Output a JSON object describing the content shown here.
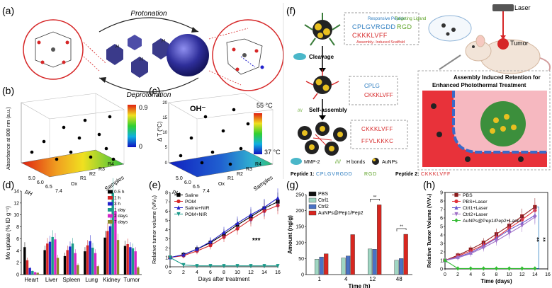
{
  "panel_labels": {
    "a": "(a)",
    "b": "(b)",
    "c": "(c)",
    "d": "(d)",
    "e": "(e)",
    "f": "(f)",
    "g": "(g)",
    "h": "(h)"
  },
  "panel_a": {
    "top_text": "Protonation",
    "bottom_text": "Deprotonation",
    "oh": "OH⁻",
    "h_label": "H"
  },
  "panel_b": {
    "zlabel": "Absorbance at 808 nm (a.u.)",
    "xlabel": "pH",
    "samples_label": "Samples",
    "ph_ticks": [
      "5.0",
      "6.0",
      "6.5",
      "7.4"
    ],
    "sample_ticks": [
      "Ox",
      "R1",
      "R2",
      "R3",
      "R4"
    ],
    "colorbar_max": "0.9",
    "colorbar_min": "0"
  },
  "panel_c": {
    "zlabel": "Δ T (°C)",
    "xlabel": "pH",
    "samples_label": "Samples",
    "z_ticks": [
      "0",
      "5",
      "10",
      "15",
      "20"
    ],
    "ph_ticks": [
      "5.0",
      "6.0",
      "6.5",
      "7.4"
    ],
    "sample_ticks": [
      "Ox",
      "R1",
      "R2",
      "R3",
      "R4"
    ],
    "colorbar_max": "55 °C",
    "colorbar_min": "37 °C"
  },
  "panel_f": {
    "cleavage": "Cleavage",
    "self_assembly": "Self-assembly",
    "responsive_peptide": "Responsive Peptide",
    "targeting_ligand": "Targeting Ligand",
    "seq_top": "CPLGVRGDD",
    "seq_rgd": "RGD",
    "seq_kl": "CKKKLVFF",
    "assembly_scaffold": "Assembly- Induced Scaffold",
    "seq_cplg": "CPLG",
    "seq_ffv": "FFVLKKKC",
    "legend_mmp": "MMP-2",
    "legend_hb": "H bonds",
    "legend_au": "AuNPs",
    "peptide1_label": "Peptide 1:",
    "peptide1_seq": "CPLGVRGDD",
    "peptide1_rgd": "RGD",
    "peptide2_label": "Peptide 2:",
    "peptide2_seq": "CKKKLVFF",
    "laser": "Laser",
    "tumor": "Tumor",
    "retention_title_1": "Assembly Induced  Retention for",
    "retention_title_2": "Enhanced Photothermal Treatment"
  },
  "chart_data": [
    {
      "panel": "b",
      "type": "scatter",
      "zlabel": "Absorbance at 808 nm (a.u.)",
      "xlabel": "pH",
      "ylabel": "Samples",
      "color_range": [
        0,
        0.9
      ],
      "x_ticks": [
        "5.0",
        "6.0",
        "6.5",
        "7.4"
      ],
      "y_ticks": [
        "Ox",
        "R1",
        "R2",
        "R3",
        "R4"
      ]
    },
    {
      "panel": "c",
      "type": "scatter",
      "zlabel": "Δ T (°C)",
      "xlabel": "pH",
      "ylabel": "Samples",
      "zlim": [
        0,
        20
      ],
      "color_range": [
        37,
        55
      ],
      "x_ticks": [
        "5.0",
        "6.0",
        "6.5",
        "7.4"
      ],
      "y_ticks": [
        "Ox",
        "R1",
        "R2",
        "R3",
        "R4"
      ]
    },
    {
      "panel": "d",
      "type": "bar",
      "ylabel": "Mo uptake (% ID g⁻¹)",
      "ylim": [
        0,
        14
      ],
      "y_ticks": [
        0,
        2,
        4,
        6,
        8,
        10,
        12,
        14
      ],
      "categories": [
        "Heart",
        "Liver",
        "Spleen",
        "Lung",
        "Kidney",
        "Tumor"
      ],
      "series": [
        {
          "name": "0.5 h",
          "color": "#000000",
          "values": [
            4.6,
            4.1,
            3.1,
            3.9,
            6.2,
            4.8
          ]
        },
        {
          "name": "1 h",
          "color": "#d62728",
          "values": [
            2.4,
            5.2,
            4.1,
            4.9,
            7.3,
            5.1
          ]
        },
        {
          "name": "3 h",
          "color": "#2222cc",
          "values": [
            1.1,
            5.5,
            4.7,
            5.6,
            8.1,
            4.6
          ]
        },
        {
          "name": "1 day",
          "color": "#1a9a8a",
          "values": [
            0.6,
            6.3,
            5.2,
            4.5,
            13.7,
            4.4
          ]
        },
        {
          "name": "2 days",
          "color": "#d626c6",
          "values": [
            0.4,
            5.9,
            3.6,
            3.6,
            10.6,
            3.9
          ]
        },
        {
          "name": "7 days",
          "color": "#8a8a2a",
          "values": [
            0.3,
            2.8,
            1.6,
            1.4,
            5.8,
            1.2
          ]
        }
      ]
    },
    {
      "panel": "e",
      "type": "line",
      "xlabel": "Days after treatment",
      "ylabel": "Relative tumor volume (V/V₀)",
      "xlim": [
        0,
        16
      ],
      "ylim": [
        0,
        8
      ],
      "x_ticks": [
        0,
        2,
        4,
        6,
        8,
        10,
        12,
        14,
        16
      ],
      "y_ticks": [
        0,
        1,
        2,
        3,
        4,
        5,
        6,
        7,
        8
      ],
      "x": [
        0,
        2,
        4,
        6,
        8,
        10,
        12,
        14,
        16
      ],
      "annotation": "***",
      "series": [
        {
          "name": "Saline",
          "color": "#000000",
          "marker": "square",
          "values": [
            1,
            1.3,
            1.9,
            2.6,
            3.5,
            4.5,
            5.4,
            6.3,
            7.0
          ]
        },
        {
          "name": "POM",
          "color": "#d62728",
          "marker": "circle",
          "values": [
            1,
            1.2,
            1.7,
            2.3,
            3.2,
            4.1,
            5.1,
            6.0,
            6.6
          ]
        },
        {
          "name": "Saline+NIR",
          "color": "#2222cc",
          "marker": "triangle",
          "values": [
            1,
            1.3,
            1.9,
            2.7,
            3.7,
            4.7,
            5.6,
            6.4,
            7.4
          ]
        },
        {
          "name": "POM+NIR",
          "color": "#1a9a8a",
          "marker": "triangle-down",
          "values": [
            1,
            0.2,
            0.1,
            0.1,
            0.1,
            0.1,
            0.1,
            0.1,
            0.1
          ]
        }
      ]
    },
    {
      "panel": "g",
      "type": "bar",
      "xlabel": "Time (h)",
      "ylabel": "Amount (ng/g)",
      "ylim": [
        0,
        250
      ],
      "y_ticks": [
        0,
        50,
        100,
        150,
        200,
        250
      ],
      "categories": [
        "1",
        "4",
        "12",
        "48"
      ],
      "series": [
        {
          "name": "PBS",
          "color": "#111111",
          "values": [
            0,
            0,
            0,
            0
          ]
        },
        {
          "name": "Ctrl1",
          "color": "#9fd6c2",
          "values": [
            48,
            52,
            80,
            45
          ]
        },
        {
          "name": "Ctrl2",
          "color": "#4a72c4",
          "values": [
            55,
            58,
            79,
            50
          ]
        },
        {
          "name": "AuNPs@Pep1/Pep2",
          "color": "#d8261f",
          "values": [
            65,
            125,
            218,
            126
          ]
        }
      ],
      "annotation": "**"
    },
    {
      "panel": "h",
      "type": "line",
      "xlabel": "Time (days)",
      "ylabel": "Relative Tumor Volume (V/V₀)",
      "xlim": [
        0,
        16
      ],
      "ylim": [
        0,
        9
      ],
      "x_ticks": [
        0,
        2,
        4,
        6,
        8,
        10,
        12,
        14,
        16
      ],
      "y_ticks": [
        0,
        1,
        2,
        3,
        4,
        5,
        6,
        7,
        8,
        9
      ],
      "x": [
        0,
        2,
        4,
        6,
        8,
        10,
        12,
        14
      ],
      "annotation": "**",
      "series": [
        {
          "name": "PBS",
          "color": "#8b1a1a",
          "marker": "square",
          "values": [
            1,
            1.6,
            2.3,
            3.1,
            4.1,
            5.1,
            6.2,
            7.3
          ]
        },
        {
          "name": "PBS+Laser",
          "color": "#e0303a",
          "marker": "circle",
          "values": [
            1,
            1.5,
            2.1,
            2.8,
            3.7,
            4.8,
            5.8,
            6.9
          ]
        },
        {
          "name": "Ctrl1+Laser",
          "color": "#6a5acd",
          "marker": "triangle",
          "values": [
            1,
            1.4,
            1.9,
            2.7,
            3.6,
            4.6,
            5.4,
            6.3
          ]
        },
        {
          "name": "Ctrl2+Laser",
          "color": "#a070c8",
          "marker": "triangle-down",
          "values": [
            1,
            1.3,
            1.8,
            2.5,
            3.3,
            4.2,
            5.1,
            6.1
          ]
        },
        {
          "name": "AuNPs@Pep1/Pep2+Laser",
          "color": "#33bb33",
          "marker": "diamond",
          "values": [
            1,
            0.05,
            0.05,
            0.05,
            0.05,
            0.05,
            0.05,
            0.05
          ]
        }
      ]
    }
  ]
}
